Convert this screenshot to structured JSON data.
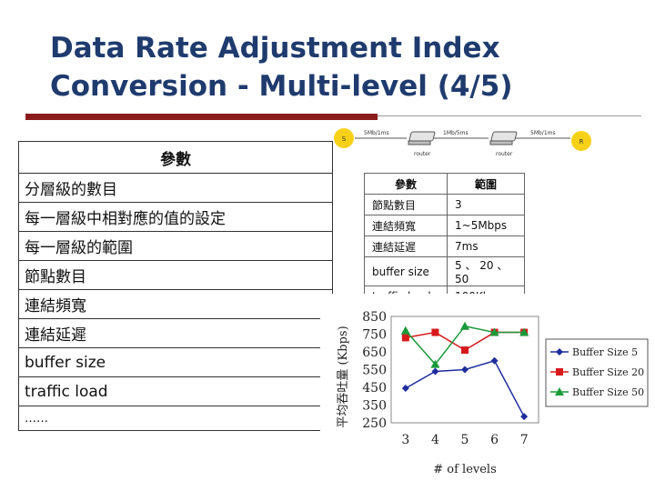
{
  "slide": {
    "title": "Data Rate Adjustment Index Conversion - Multi-level (4/5)"
  },
  "left_table": {
    "header": "參數",
    "rows": [
      "分層級的數目",
      "每一層級中相對應的值的設定",
      "每一層級的範圍",
      "節點數目",
      "連結頻寬",
      "連結延遲",
      "buffer size",
      "traffic load",
      "……"
    ]
  },
  "network": {
    "source": "S",
    "receiver": "R",
    "link1": "5Mb/1ms",
    "link2": "1Mb/5ms",
    "link3": "5Mb/1ms",
    "router1": "router",
    "router2": "router"
  },
  "right_table": {
    "headers": [
      "參數",
      "範圍"
    ],
    "rows": [
      [
        "節點數目",
        "3"
      ],
      [
        "連結頻寬",
        "1~5Mbps"
      ],
      [
        "連結延遲",
        "7ms"
      ],
      [
        "buffer size",
        "5 、 20 、 50"
      ],
      [
        "traffic load",
        "100Kbps"
      ]
    ]
  },
  "chart_data": {
    "type": "line",
    "title": "",
    "xlabel": "# of levels",
    "ylabel": "平均吞吐量 (Kbps)",
    "x": [
      3,
      4,
      5,
      6,
      7
    ],
    "ylim": [
      250,
      850
    ],
    "yticks": [
      250,
      350,
      450,
      550,
      650,
      750,
      850
    ],
    "grid": "horizontal",
    "legend": "right",
    "series": [
      {
        "name": "Buffer Size 5",
        "color": "#1f2d9c",
        "marker": "diamond",
        "values": [
          445,
          540,
          550,
          600,
          285
        ]
      },
      {
        "name": "Buffer Size 20",
        "color": "#d7191c",
        "marker": "square",
        "values": [
          730,
          760,
          660,
          760,
          760
        ]
      },
      {
        "name": "Buffer Size 50",
        "color": "#1a9a3a",
        "marker": "triangle",
        "values": [
          770,
          580,
          795,
          760,
          760
        ]
      }
    ]
  }
}
